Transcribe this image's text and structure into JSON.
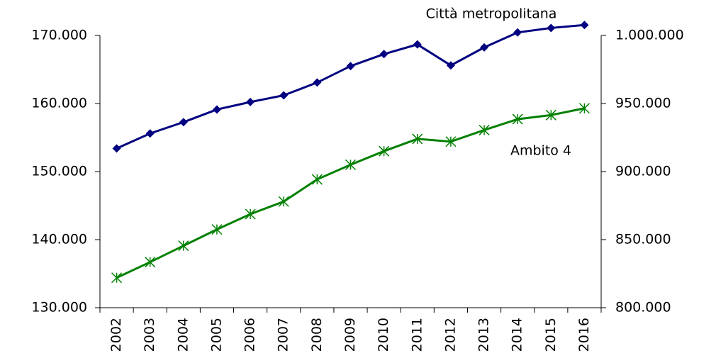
{
  "chart_data": {
    "type": "line",
    "categories": [
      "2002",
      "2003",
      "2004",
      "2005",
      "2006",
      "2007",
      "2008",
      "2009",
      "2010",
      "2011",
      "2012",
      "2013",
      "2014",
      "2015",
      "2016"
    ],
    "series": [
      {
        "name": "Città metropolitana",
        "color": "#000080",
        "axis": "y2",
        "marker": "diamond",
        "values": [
          917000,
          928000,
          936300,
          945600,
          951100,
          956000,
          965400,
          977500,
          986300,
          993400,
          978000,
          991200,
          1002200,
          1005500,
          1007700
        ]
      },
      {
        "name": "Ambito 4",
        "color": "#008000",
        "marker": "asterisk",
        "values": [
          134400,
          136700,
          139100,
          141500,
          143750,
          145600,
          148850,
          151000,
          153000,
          154800,
          154400,
          156100,
          157700,
          158300,
          159300
        ]
      }
    ],
    "ylim": [
      130000,
      170000
    ],
    "yticks": [
      {
        "value": 130000,
        "label": "130.000"
      },
      {
        "value": 140000,
        "label": "140.000"
      },
      {
        "value": 150000,
        "label": "150.000"
      },
      {
        "value": 160000,
        "label": "160.000"
      },
      {
        "value": 170000,
        "label": "170.000"
      }
    ],
    "y2lim": [
      800000,
      1000000
    ],
    "y2ticks": [
      {
        "value": 800000,
        "label": "800.000"
      },
      {
        "value": 850000,
        "label": "850.000"
      },
      {
        "value": 900000,
        "label": "900.000"
      },
      {
        "value": 950000,
        "label": "950.000"
      },
      {
        "value": 1000000,
        "label": "1.000.000"
      }
    ]
  }
}
